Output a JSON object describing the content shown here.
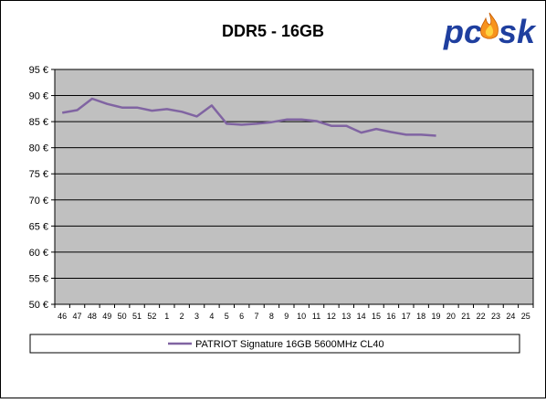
{
  "logo": {
    "text_pc": "pc",
    "text_o": "o",
    "text_sk": "sk",
    "colors": {
      "letters": "#1f3f9f",
      "outline": "#ffffff",
      "flame": "#f7931e",
      "flame_inner": "#ffd23f"
    }
  },
  "colors": {
    "background": "#ffffff",
    "plot_background": "#c0c0c0",
    "grid": "#000000",
    "series_line": "#8064a2",
    "frame": "#000000"
  },
  "chart_data": {
    "type": "line",
    "title": "DDR5 - 16GB",
    "xlabel": "",
    "ylabel": "",
    "categories": [
      "46",
      "47",
      "48",
      "49",
      "50",
      "51",
      "52",
      "1",
      "2",
      "3",
      "4",
      "5",
      "6",
      "7",
      "8",
      "9",
      "10",
      "11",
      "12",
      "13",
      "14",
      "15",
      "16",
      "17",
      "18",
      "19",
      "20",
      "21",
      "22",
      "23",
      "24",
      "25"
    ],
    "ylim": [
      50,
      95
    ],
    "y_ticks": [
      {
        "value": 50,
        "label": "50 €"
      },
      {
        "value": 55,
        "label": "55 €"
      },
      {
        "value": 60,
        "label": "60 €"
      },
      {
        "value": 65,
        "label": "65 €"
      },
      {
        "value": 70,
        "label": "70 €"
      },
      {
        "value": 75,
        "label": "75 €"
      },
      {
        "value": 80,
        "label": "80 €"
      },
      {
        "value": 85,
        "label": "85 €"
      },
      {
        "value": 90,
        "label": "90 €"
      },
      {
        "value": 95,
        "label": "95 €"
      }
    ],
    "grid": true,
    "legend_position": "bottom",
    "series": [
      {
        "name": "PATRIOT Signature 16GB 5600MHz CL40",
        "values": [
          86.7,
          87.2,
          89.4,
          88.4,
          87.7,
          87.7,
          87.1,
          87.4,
          86.9,
          86.0,
          88.1,
          84.6,
          84.4,
          84.6,
          84.9,
          85.4,
          85.4,
          85.1,
          84.2,
          84.2,
          82.9,
          83.6,
          83.0,
          82.5,
          82.5,
          82.3,
          null,
          null,
          null,
          null,
          null,
          null
        ]
      }
    ]
  }
}
